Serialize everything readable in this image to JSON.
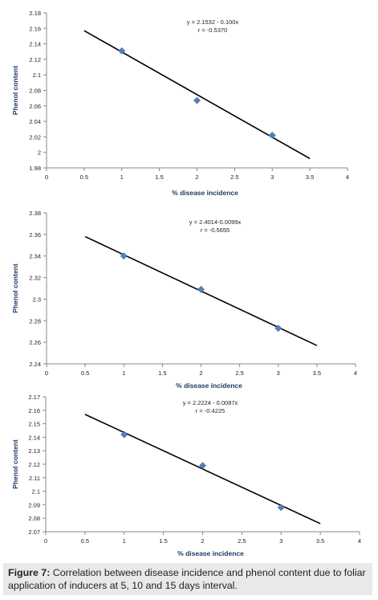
{
  "chart_data": [
    {
      "type": "scatter",
      "xlabel": "% disease incidence",
      "ylabel": "Phenol content",
      "xlim": [
        0,
        4
      ],
      "ylim": [
        1.98,
        2.18
      ],
      "xticks": [
        "0",
        "0.5",
        "1",
        "1.5",
        "2",
        "2.5",
        "3",
        "3.5",
        "4"
      ],
      "yticks": [
        "1.98",
        "2",
        "2.02",
        "2.04",
        "2.06",
        "2.08",
        "2.1",
        "2.12",
        "2.14",
        "2.16",
        "2.18"
      ],
      "points": [
        {
          "x": 1,
          "y": 2.131
        },
        {
          "x": 2,
          "y": 2.067
        },
        {
          "x": 3,
          "y": 2.022
        }
      ],
      "trendline": {
        "x": [
          0.5,
          3.5
        ],
        "y": [
          2.157,
          1.992
        ]
      },
      "equation": "y = 2.1532 - 0.100x",
      "r_label": "r = -0.5370",
      "marker_color": "#4f81bd"
    },
    {
      "type": "scatter",
      "xlabel": "% disease incidence",
      "ylabel": "Phenol content",
      "xlim": [
        0,
        4
      ],
      "ylim": [
        2.24,
        2.38
      ],
      "xticks": [
        "0",
        "0.5",
        "1",
        "1.5",
        "2",
        "2.5",
        "3",
        "3.5",
        "4"
      ],
      "yticks": [
        "2.24",
        "2.26",
        "2.28",
        "2.3",
        "2.32",
        "2.34",
        "2.36",
        "2.38"
      ],
      "points": [
        {
          "x": 1,
          "y": 2.34
        },
        {
          "x": 2,
          "y": 2.309
        },
        {
          "x": 3,
          "y": 2.273
        }
      ],
      "trendline": {
        "x": [
          0.5,
          3.5
        ],
        "y": [
          2.358,
          2.257
        ]
      },
      "equation": "y = 2.4014-0.0099x",
      "r_label": "r = -0.5655",
      "marker_color": "#4f81bd"
    },
    {
      "type": "scatter",
      "xlabel": "% disease incidence",
      "ylabel": "Phenol content",
      "xlim": [
        0,
        4
      ],
      "ylim": [
        2.07,
        2.17
      ],
      "xticks": [
        "0",
        "0.5",
        "1",
        "1.5",
        "2",
        "2.5",
        "3",
        "3.5",
        "4"
      ],
      "yticks": [
        "2.07",
        "2.08",
        "2.09",
        "2.1",
        "2.11",
        "2.12",
        "2.13",
        "2.14",
        "2.15",
        "2.16",
        "2.17"
      ],
      "points": [
        {
          "x": 1,
          "y": 2.142
        },
        {
          "x": 2,
          "y": 2.119
        },
        {
          "x": 3,
          "y": 2.088
        }
      ],
      "trendline": {
        "x": [
          0.5,
          3.5
        ],
        "y": [
          2.157,
          2.076
        ]
      },
      "equation": "y = 2.2224 - 0.0087x",
      "r_label": "r = -0.4225",
      "marker_color": "#4f81bd"
    }
  ],
  "caption": {
    "label": "Figure 7:",
    "text": " Correlation between disease incidence and phenol content due to foliar application of inducers at 5, 10 and 15 days interval."
  }
}
